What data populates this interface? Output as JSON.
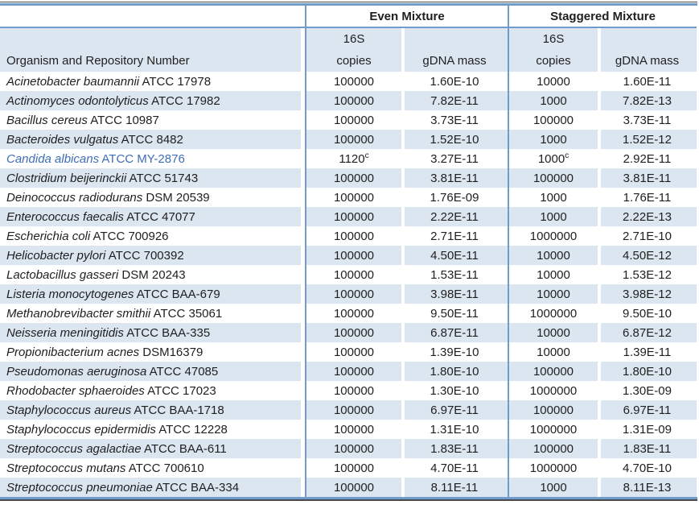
{
  "table": {
    "group_headers": {
      "even": "Even Mixture",
      "staggered": "Staggered Mixture"
    },
    "subheaders": {
      "organism": "Organism and Repository Number",
      "copies_line1": "16S",
      "copies_line2": "copies",
      "gdna": "gDNA mass"
    },
    "rows": [
      {
        "organism": "Acinetobacter baumannii",
        "repository": "ATCC 17978",
        "even_copies": "100000",
        "even_note": "",
        "even_gdna": "1.60E-10",
        "stag_copies": "10000",
        "stag_note": "",
        "stag_gdna": "1.60E-11",
        "accent": false
      },
      {
        "organism": "Actinomyces odontolyticus",
        "repository": "ATCC 17982",
        "even_copies": "100000",
        "even_note": "",
        "even_gdna": "7.82E-11",
        "stag_copies": "1000",
        "stag_note": "",
        "stag_gdna": "7.82E-13",
        "accent": false
      },
      {
        "organism": "Bacillus cereus",
        "repository": "ATCC 10987",
        "even_copies": "100000",
        "even_note": "",
        "even_gdna": "3.73E-11",
        "stag_copies": "100000",
        "stag_note": "",
        "stag_gdna": "3.73E-11",
        "accent": false
      },
      {
        "organism": "Bacteroides vulgatus",
        "repository": "ATCC 8482",
        "even_copies": "100000",
        "even_note": "",
        "even_gdna": "1.52E-10",
        "stag_copies": "1000",
        "stag_note": "",
        "stag_gdna": "1.52E-12",
        "accent": false
      },
      {
        "organism": "Candida albicans",
        "repository": "ATCC MY-2876",
        "even_copies": "1120",
        "even_note": "c",
        "even_gdna": "3.27E-11",
        "stag_copies": "1000",
        "stag_note": "c",
        "stag_gdna": "2.92E-11",
        "accent": true
      },
      {
        "organism": "Clostridium beijerinckii",
        "repository": "ATCC 51743",
        "even_copies": "100000",
        "even_note": "",
        "even_gdna": "3.81E-11",
        "stag_copies": "100000",
        "stag_note": "",
        "stag_gdna": "3.81E-11",
        "accent": false
      },
      {
        "organism": "Deinococcus radiodurans",
        "repository": "DSM 20539",
        "even_copies": "100000",
        "even_note": "",
        "even_gdna": "1.76E-09",
        "stag_copies": "1000",
        "stag_note": "",
        "stag_gdna": "1.76E-11",
        "accent": false
      },
      {
        "organism": "Enterococcus faecalis",
        "repository": "ATCC 47077",
        "even_copies": "100000",
        "even_note": "",
        "even_gdna": "2.22E-11",
        "stag_copies": "1000",
        "stag_note": "",
        "stag_gdna": "2.22E-13",
        "accent": false
      },
      {
        "organism": "Escherichia coli",
        "repository": "ATCC 700926",
        "even_copies": "100000",
        "even_note": "",
        "even_gdna": "2.71E-11",
        "stag_copies": "1000000",
        "stag_note": "",
        "stag_gdna": "2.71E-10",
        "accent": false
      },
      {
        "organism": "Helicobacter pylori",
        "repository": "ATCC 700392",
        "even_copies": "100000",
        "even_note": "",
        "even_gdna": "4.50E-11",
        "stag_copies": "10000",
        "stag_note": "",
        "stag_gdna": "4.50E-12",
        "accent": false
      },
      {
        "organism": "Lactobacillus gasseri",
        "repository": "DSM 20243",
        "even_copies": "100000",
        "even_note": "",
        "even_gdna": "1.53E-11",
        "stag_copies": "10000",
        "stag_note": "",
        "stag_gdna": "1.53E-12",
        "accent": false
      },
      {
        "organism": "Listeria monocytogenes",
        "repository": "ATCC BAA-679",
        "even_copies": "100000",
        "even_note": "",
        "even_gdna": "3.98E-11",
        "stag_copies": "10000",
        "stag_note": "",
        "stag_gdna": "3.98E-12",
        "accent": false
      },
      {
        "organism": "Methanobrevibacter smithii",
        "repository": "ATCC 35061",
        "even_copies": "100000",
        "even_note": "",
        "even_gdna": "9.50E-11",
        "stag_copies": "1000000",
        "stag_note": "",
        "stag_gdna": "9.50E-10",
        "accent": false
      },
      {
        "organism": "Neisseria meningitidis",
        "repository": "ATCC BAA-335",
        "even_copies": "100000",
        "even_note": "",
        "even_gdna": "6.87E-11",
        "stag_copies": "10000",
        "stag_note": "",
        "stag_gdna": "6.87E-12",
        "accent": false
      },
      {
        "organism": "Propionibacterium acnes",
        "repository": "DSM16379",
        "even_copies": "100000",
        "even_note": "",
        "even_gdna": "1.39E-10",
        "stag_copies": "10000",
        "stag_note": "",
        "stag_gdna": "1.39E-11",
        "accent": false
      },
      {
        "organism": "Pseudomonas aeruginosa",
        "repository": "ATCC 47085",
        "even_copies": "100000",
        "even_note": "",
        "even_gdna": "1.80E-10",
        "stag_copies": "100000",
        "stag_note": "",
        "stag_gdna": "1.80E-10",
        "accent": false
      },
      {
        "organism": "Rhodobacter sphaeroides",
        "repository": "ATCC 17023",
        "even_copies": "100000",
        "even_note": "",
        "even_gdna": "1.30E-10",
        "stag_copies": "1000000",
        "stag_note": "",
        "stag_gdna": "1.30E-09",
        "accent": false
      },
      {
        "organism": "Staphylococcus aureus",
        "repository": "ATCC BAA-1718",
        "even_copies": "100000",
        "even_note": "",
        "even_gdna": "6.97E-11",
        "stag_copies": "100000",
        "stag_note": "",
        "stag_gdna": "6.97E-11",
        "accent": false
      },
      {
        "organism": "Staphylococcus epidermidis",
        "repository": "ATCC 12228",
        "even_copies": "100000",
        "even_note": "",
        "even_gdna": "1.31E-10",
        "stag_copies": "1000000",
        "stag_note": "",
        "stag_gdna": "1.31E-09",
        "accent": false
      },
      {
        "organism": "Streptococcus agalactiae",
        "repository": "ATCC BAA-611",
        "even_copies": "100000",
        "even_note": "",
        "even_gdna": "1.83E-11",
        "stag_copies": "100000",
        "stag_note": "",
        "stag_gdna": "1.83E-11",
        "accent": false
      },
      {
        "organism": "Streptococcus mutans",
        "repository": "ATCC 700610",
        "even_copies": "100000",
        "even_note": "",
        "even_gdna": "4.70E-11",
        "stag_copies": "1000000",
        "stag_note": "",
        "stag_gdna": "4.70E-10",
        "accent": false
      },
      {
        "organism": "Streptococcus pneumoniae",
        "repository": "ATCC BAA-334",
        "even_copies": "100000",
        "even_note": "",
        "even_gdna": "8.11E-11",
        "stag_copies": "1000",
        "stag_note": "",
        "stag_gdna": "8.11E-13",
        "accent": false
      }
    ]
  },
  "colors": {
    "stripe_blue": "#dce6f1",
    "divider_blue": "#6f9bcd",
    "outer_dark": "#4a4a4a",
    "accent_row_text": "#3e6fb5",
    "body_text": "#1f1f1f"
  }
}
